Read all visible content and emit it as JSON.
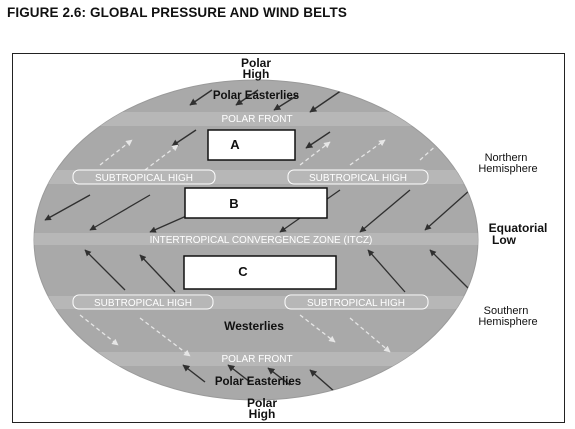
{
  "figure_title": "FIGURE 2.6: GLOBAL PRESSURE AND WIND BELTS",
  "north_pole": {
    "line1": "Polar",
    "line2": "High"
  },
  "south_pole": {
    "line1": "Polar",
    "line2": "High"
  },
  "polar_easterlies_north": "Polar Easterlies",
  "polar_easterlies_south": "Polar Easterlies",
  "polar_front_north": "POLAR FRONT",
  "polar_front_south": "POLAR FRONT",
  "subtropical_high": {
    "north_left": "SUBTROPICAL HIGH",
    "north_right": "SUBTROPICAL HIGH",
    "south_left": "SUBTROPICAL HIGH",
    "south_right": "SUBTROPICAL HIGH"
  },
  "itcz": "INTERTROPICAL CONVERGENCE ZONE (ITCZ)",
  "westerlies": "Westerlies",
  "boxes": {
    "a": "A",
    "b": "B",
    "c": "C"
  },
  "side_labels": {
    "northern_line1": "Northern",
    "northern_line2": "Hemisphere",
    "equatorial_line1": "Equatorial",
    "equatorial_line2": "Low",
    "southern_line1": "Southern",
    "southern_line2": "Hemisphere"
  },
  "colors": {
    "globe": "#a9a9a9",
    "band": "#bdbdbd",
    "dark_arrow": "#303030",
    "light_arrow": "#e6e6e6",
    "text_dark": "#111111",
    "text_light": "#ffffff"
  }
}
